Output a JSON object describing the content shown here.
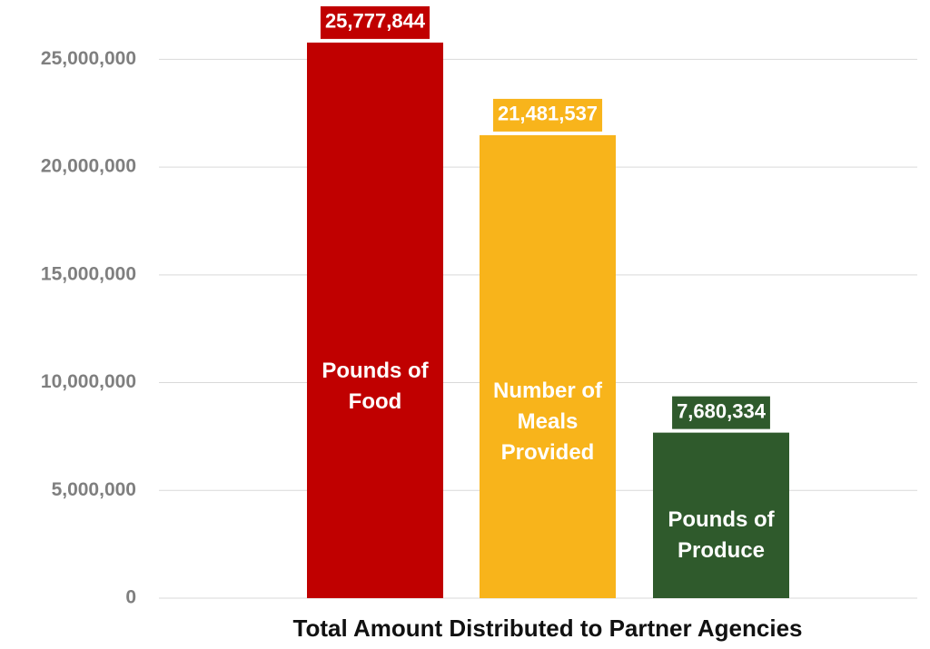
{
  "chart_data": {
    "type": "bar",
    "x_label": "Total Amount Distributed to Partner Agencies",
    "categories": [
      "Pounds of Food",
      "Number of Meals Provided",
      "Pounds of Produce"
    ],
    "values": [
      25777844,
      21481537,
      7680334
    ],
    "value_labels": [
      "25,777,844",
      "21,481,537",
      "7,680,334"
    ],
    "colors": [
      "#c00000",
      "#f8b41b",
      "#2f5a2c"
    ],
    "ylim": [
      0,
      27500000
    ],
    "yticks": [
      0,
      {
        "value": 5000000,
        "label": "5,000,000"
      },
      {
        "value": 10000000,
        "label": "10,000,000"
      },
      {
        "value": 15000000,
        "label": "15,000,000"
      },
      {
        "value": 20000000,
        "label": "20,000,000"
      },
      {
        "value": 25000000,
        "label": "25,000,000"
      }
    ],
    "grid": true
  }
}
